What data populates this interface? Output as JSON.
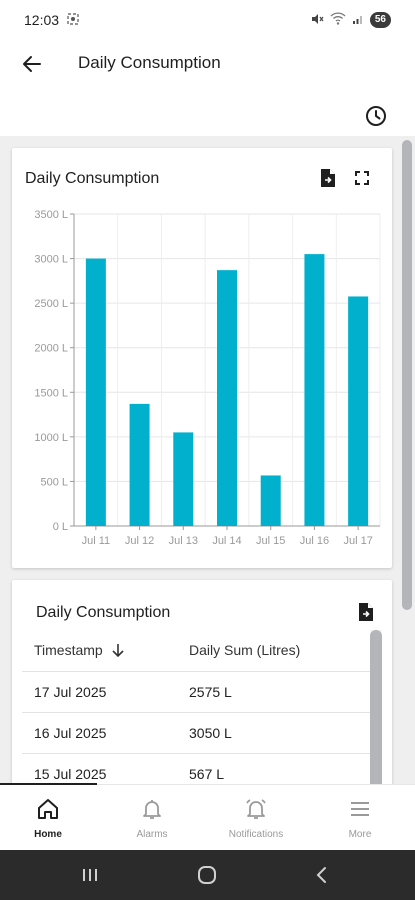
{
  "status_bar": {
    "time": "12:03",
    "battery": "56"
  },
  "app_bar": {
    "title": "Daily Consumption"
  },
  "chart_card": {
    "title": "Daily Consumption"
  },
  "chart_data": {
    "type": "bar",
    "title": "Daily Consumption",
    "categories": [
      "Jul 11",
      "Jul 12",
      "Jul 13",
      "Jul 14",
      "Jul 15",
      "Jul 16",
      "Jul 17"
    ],
    "values": [
      3000,
      1370,
      1050,
      2870,
      567,
      3050,
      2575
    ],
    "ylim": [
      0,
      3500
    ],
    "yticks": [
      "0 L",
      "500 L",
      "1000 L",
      "1500 L",
      "2000 L",
      "2500 L",
      "3000 L",
      "3500 L"
    ],
    "bar_color": "#00b0cc",
    "grid": true
  },
  "table_card": {
    "title": "Daily Consumption",
    "headers": {
      "timestamp": "Timestamp",
      "sum": "Daily Sum (Litres)"
    },
    "rows": [
      {
        "timestamp": "17 Jul 2025",
        "value": "2575 L"
      },
      {
        "timestamp": "16 Jul 2025",
        "value": "3050 L"
      },
      {
        "timestamp": "15 Jul 2025",
        "value": "567 L"
      }
    ]
  },
  "bottom_nav": {
    "items": [
      {
        "label": "Home",
        "icon": "home-icon"
      },
      {
        "label": "Alarms",
        "icon": "bell-icon"
      },
      {
        "label": "Notifications",
        "icon": "alarm-bell-icon"
      },
      {
        "label": "More",
        "icon": "menu-icon"
      }
    ]
  },
  "colors": {
    "accent": "#00b0cc",
    "active_nav": "#1f1f1f",
    "inactive_nav": "#9a9a9a"
  }
}
